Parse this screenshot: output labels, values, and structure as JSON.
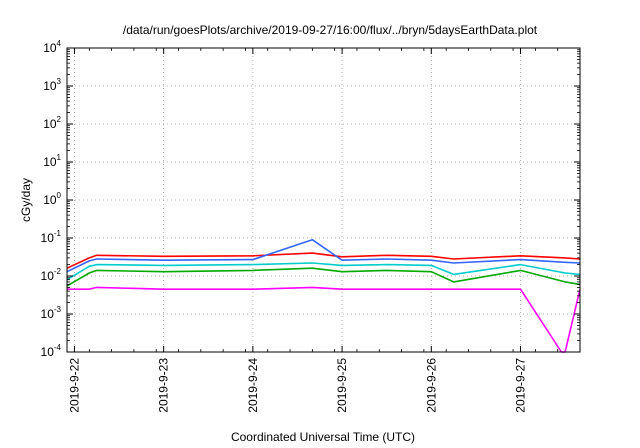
{
  "chart_data": {
    "type": "line",
    "title": "/data/run/goesPlots/archive/2019-09-27/16:00/flux/../bryn/5daysEarthData.plot",
    "xlabel": "Coordinated Universal Time (UTC)",
    "ylabel": "cGy/day",
    "y_scale": "log",
    "ylim": [
      0.0001,
      10000
    ],
    "y_ticks": [
      {
        "base": "10",
        "exp": "4",
        "value": 10000
      },
      {
        "base": "10",
        "exp": "3",
        "value": 1000
      },
      {
        "base": "10",
        "exp": "2",
        "value": 100
      },
      {
        "base": "10",
        "exp": "1",
        "value": 10
      },
      {
        "base": "10",
        "exp": "0",
        "value": 1
      },
      {
        "base": "10",
        "exp": "-1",
        "value": 0.1
      },
      {
        "base": "10",
        "exp": "-2",
        "value": 0.01
      },
      {
        "base": "10",
        "exp": "-3",
        "value": 0.001
      },
      {
        "base": "10",
        "exp": "-4",
        "value": 0.0001
      }
    ],
    "x_ticks": [
      "2019-9-22",
      "2019-9-23",
      "2019-9-24",
      "2019-9-25",
      "2019-9-26",
      "2019-9-27"
    ],
    "xlim": [
      "2019-09-21 22:00",
      "2019-09-27 16:00"
    ],
    "grid": true,
    "legend": "none",
    "series_colors": [
      "#ff0000",
      "#00aa00",
      "#3366ff",
      "#00cccc",
      "#ff00ff"
    ],
    "series": [
      {
        "color": "#ff0000",
        "x": [
          "2019-09-21 22:00",
          "2019-09-22 04:00",
          "2019-09-22 06:00",
          "2019-09-23 00:00",
          "2019-09-24 00:00",
          "2019-09-24 16:00",
          "2019-09-25 00:00",
          "2019-09-25 12:00",
          "2019-09-26 00:00",
          "2019-09-26 06:00",
          "2019-09-27 00:00",
          "2019-09-27 12:00",
          "2019-09-27 16:00"
        ],
        "values": [
          0.016,
          0.03,
          0.035,
          0.033,
          0.034,
          0.04,
          0.032,
          0.035,
          0.033,
          0.028,
          0.034,
          0.03,
          0.028
        ]
      },
      {
        "color": "#00aa00",
        "x": [
          "2019-09-21 22:00",
          "2019-09-22 04:00",
          "2019-09-22 06:00",
          "2019-09-23 00:00",
          "2019-09-24 00:00",
          "2019-09-24 16:00",
          "2019-09-25 00:00",
          "2019-09-25 12:00",
          "2019-09-26 00:00",
          "2019-09-26 06:00",
          "2019-09-27 00:00",
          "2019-09-27 12:00",
          "2019-09-27 16:00"
        ],
        "values": [
          0.0055,
          0.012,
          0.014,
          0.013,
          0.014,
          0.016,
          0.013,
          0.014,
          0.013,
          0.007,
          0.014,
          0.007,
          0.006
        ]
      },
      {
        "color": "#3366ff",
        "x": [
          "2019-09-21 22:00",
          "2019-09-22 04:00",
          "2019-09-22 06:00",
          "2019-09-23 00:00",
          "2019-09-24 00:00",
          "2019-09-24 16:00",
          "2019-09-25 00:00",
          "2019-09-25 12:00",
          "2019-09-26 00:00",
          "2019-09-26 06:00",
          "2019-09-27 00:00",
          "2019-09-27 12:00",
          "2019-09-27 16:00"
        ],
        "values": [
          0.013,
          0.025,
          0.028,
          0.026,
          0.027,
          0.09,
          0.026,
          0.028,
          0.026,
          0.022,
          0.027,
          0.023,
          0.022
        ]
      },
      {
        "color": "#00cccc",
        "x": [
          "2019-09-21 22:00",
          "2019-09-22 04:00",
          "2019-09-22 06:00",
          "2019-09-23 00:00",
          "2019-09-24 00:00",
          "2019-09-24 16:00",
          "2019-09-25 00:00",
          "2019-09-25 12:00",
          "2019-09-26 00:00",
          "2019-09-26 06:00",
          "2019-09-27 00:00",
          "2019-09-27 12:00",
          "2019-09-27 16:00"
        ],
        "values": [
          0.008,
          0.018,
          0.02,
          0.019,
          0.02,
          0.022,
          0.019,
          0.02,
          0.019,
          0.011,
          0.02,
          0.012,
          0.011
        ]
      },
      {
        "color": "#ff00ff",
        "x": [
          "2019-09-21 22:00",
          "2019-09-22 04:00",
          "2019-09-22 06:00",
          "2019-09-23 00:00",
          "2019-09-24 00:00",
          "2019-09-24 16:00",
          "2019-09-25 00:00",
          "2019-09-25 12:00",
          "2019-09-26 00:00",
          "2019-09-26 06:00",
          "2019-09-27 00:00",
          "2019-09-27 11:00",
          "2019-09-27 12:00",
          "2019-09-27 16:00"
        ],
        "values": [
          0.0045,
          0.0045,
          0.005,
          0.0045,
          0.0045,
          0.005,
          0.0045,
          0.0045,
          0.0045,
          0.0045,
          0.0045,
          0.0001,
          0.0001,
          0.0045
        ]
      }
    ]
  }
}
